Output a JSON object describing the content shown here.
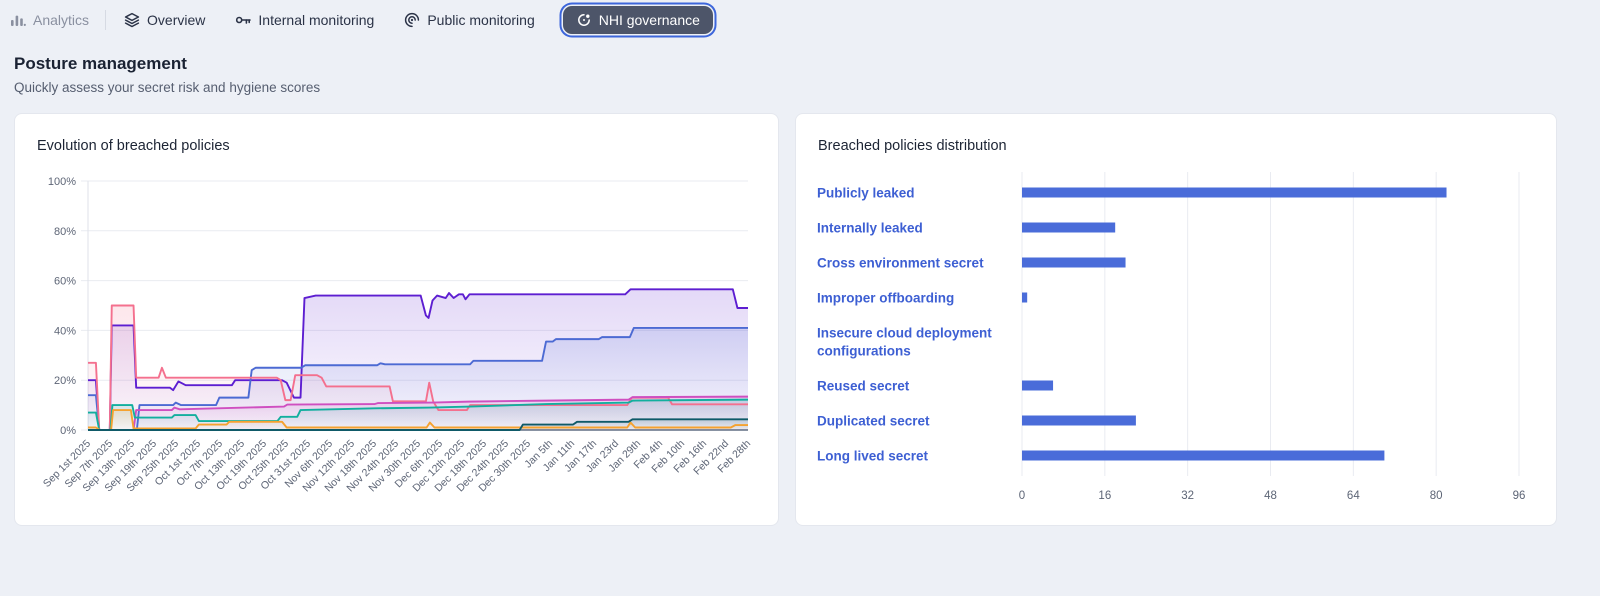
{
  "nav": {
    "analytics": {
      "label": "Analytics",
      "icon": "bar-chart-icon"
    },
    "tabs": [
      {
        "label": "Overview",
        "icon": "layers-icon",
        "selected": false
      },
      {
        "label": "Internal monitoring",
        "icon": "key-icon",
        "selected": false
      },
      {
        "label": "Public monitoring",
        "icon": "spiral-icon",
        "selected": false
      },
      {
        "label": "NHI governance",
        "icon": "orbit-icon",
        "selected": true
      }
    ]
  },
  "header": {
    "title": "Posture management",
    "subtitle": "Quickly assess your secret risk and hygiene scores"
  },
  "colors": {
    "page_bg": "#edf0f6",
    "card_bg": "#ffffff",
    "accent_bar_blue": "#4a6cd9",
    "link_blue": "#3d5fd3",
    "pill_bg": "#4d5569",
    "pill_ring": "#3d66db",
    "grid_line": "#e9ebf1",
    "tick_text": "#5d6576"
  },
  "chart_data": [
    {
      "type": "area",
      "title": "Evolution of breached policies",
      "xlabel": "",
      "ylabel": "",
      "ylim": [
        0,
        100
      ],
      "grid": "horizontal",
      "legend": "none",
      "ytick_labels": [
        "0%",
        "20%",
        "40%",
        "60%",
        "80%",
        "100%"
      ],
      "yticks": [
        0,
        20,
        40,
        60,
        80,
        100
      ],
      "x_labels": [
        "Sep 1st 2025",
        "Sep 7th 2025",
        "Sep 13th 2025",
        "Sep 19th 2025",
        "Sep 25th 2025",
        "Oct 1st 2025",
        "Oct 7th 2025",
        "Oct 13th 2025",
        "Oct 19th 2025",
        "Oct 25th 2025",
        "Oct 31st 2025",
        "Nov 6th 2025",
        "Nov 12th 2025",
        "Nov 18th 2025",
        "Nov 24th 2025",
        "Nov 30th 2025",
        "Dec 6th 2025",
        "Dec 12th 2025",
        "Dec 18th 2025",
        "Dec 24th 2025",
        "Dec 30th 2025",
        "Jan 5th",
        "Jan 11th",
        "Jan 17th",
        "Jan 23rd",
        "Jan 29th",
        "Feb 4th",
        "Feb 10th",
        "Feb 16th",
        "Feb 22nd",
        "Feb 28th"
      ],
      "series": [
        {
          "color": "#5d1ed1",
          "points": [
            [
              0,
              20
            ],
            [
              1.2,
              20
            ],
            [
              1.7,
              0
            ],
            [
              3.3,
              0
            ],
            [
              3.6,
              42
            ],
            [
              6.9,
              42
            ],
            [
              7.3,
              17
            ],
            [
              12.4,
              17
            ],
            [
              12.9,
              16
            ],
            [
              13.7,
              19.5
            ],
            [
              14.8,
              18
            ],
            [
              21.8,
              18
            ],
            [
              22.3,
              20
            ],
            [
              29.4,
              20
            ],
            [
              30.1,
              19
            ],
            [
              31.2,
              13
            ],
            [
              32.2,
              13
            ],
            [
              32.8,
              53
            ],
            [
              34.5,
              54
            ],
            [
              50.4,
              54
            ],
            [
              51.2,
              46
            ],
            [
              51.6,
              45
            ],
            [
              52.2,
              52
            ],
            [
              52.9,
              54
            ],
            [
              54.2,
              53
            ],
            [
              54.7,
              55
            ],
            [
              55.4,
              53
            ],
            [
              56.2,
              54.5
            ],
            [
              56.8,
              54.5
            ],
            [
              57.2,
              52.5
            ],
            [
              57.8,
              54.5
            ],
            [
              81.4,
              54.5
            ],
            [
              82.2,
              56.5
            ],
            [
              97.7,
              56.5
            ],
            [
              98.4,
              49
            ],
            [
              100,
              49
            ]
          ]
        },
        {
          "color": "#4c6ad3",
          "points": [
            [
              0,
              14
            ],
            [
              1.2,
              14
            ],
            [
              1.7,
              0
            ],
            [
              7.4,
              0
            ],
            [
              7.8,
              10
            ],
            [
              12.9,
              10
            ],
            [
              13.3,
              11
            ],
            [
              14.1,
              10
            ],
            [
              19.4,
              10
            ],
            [
              19.9,
              13
            ],
            [
              24.3,
              13
            ],
            [
              24.8,
              24
            ],
            [
              25.4,
              25
            ],
            [
              32.3,
              25
            ],
            [
              32.9,
              26
            ],
            [
              43.8,
              26
            ],
            [
              44.3,
              26.8
            ],
            [
              45,
              26.4
            ],
            [
              57.9,
              26.4
            ],
            [
              58.4,
              27.8
            ],
            [
              68.8,
              27.8
            ],
            [
              69.4,
              35.5
            ],
            [
              70.4,
              35.5
            ],
            [
              70.9,
              36.5
            ],
            [
              77.4,
              36.5
            ],
            [
              77.9,
              37.3
            ],
            [
              82.1,
              37.3
            ],
            [
              82.7,
              41
            ],
            [
              100,
              41
            ]
          ]
        },
        {
          "color": "#f4708e",
          "points": [
            [
              0,
              27
            ],
            [
              1.2,
              27
            ],
            [
              1.7,
              0
            ],
            [
              3.3,
              0
            ],
            [
              3.6,
              50
            ],
            [
              6.9,
              50
            ],
            [
              7.3,
              21
            ],
            [
              10.7,
              21
            ],
            [
              11.2,
              25
            ],
            [
              11.8,
              21
            ],
            [
              28.6,
              21
            ],
            [
              29.2,
              20
            ],
            [
              29.9,
              12
            ],
            [
              30.7,
              12
            ],
            [
              31.4,
              22
            ],
            [
              34.7,
              22
            ],
            [
              35.4,
              21
            ],
            [
              36.1,
              17.5
            ],
            [
              45.7,
              17.5
            ],
            [
              46.2,
              11.5
            ],
            [
              51.2,
              11.5
            ],
            [
              51.7,
              19
            ],
            [
              52.3,
              11.5
            ],
            [
              53.1,
              8
            ],
            [
              57.4,
              8
            ],
            [
              57.9,
              10
            ],
            [
              81.7,
              10
            ],
            [
              82.4,
              13
            ],
            [
              87.9,
              13
            ],
            [
              88.5,
              10.3
            ],
            [
              100,
              10.3
            ]
          ]
        },
        {
          "color": "#cf4fc0",
          "points": [
            [
              0,
              0
            ],
            [
              6.9,
              0
            ],
            [
              7.3,
              8
            ],
            [
              12.7,
              8
            ],
            [
              13.1,
              9
            ],
            [
              13.9,
              8.3
            ],
            [
              29.7,
              9.4
            ],
            [
              30.2,
              10.2
            ],
            [
              43.4,
              10.4
            ],
            [
              43.9,
              10.8
            ],
            [
              52.2,
              11
            ],
            [
              57.7,
              11.4
            ],
            [
              69.4,
              11.8
            ],
            [
              81.9,
              12.2
            ],
            [
              82.5,
              13.2
            ],
            [
              100,
              13.4
            ]
          ]
        },
        {
          "color": "#12af9e",
          "points": [
            [
              0,
              7
            ],
            [
              1.2,
              7
            ],
            [
              1.7,
              0
            ],
            [
              3.4,
              0
            ],
            [
              3.7,
              10
            ],
            [
              6.7,
              10
            ],
            [
              7.1,
              5
            ],
            [
              12.7,
              5
            ],
            [
              13.1,
              6
            ],
            [
              16.3,
              6
            ],
            [
              16.8,
              3.6
            ],
            [
              28.7,
              3.6
            ],
            [
              29.2,
              5.3
            ],
            [
              31.7,
              5.3
            ],
            [
              32.2,
              8
            ],
            [
              43.4,
              8.7
            ],
            [
              51.9,
              9
            ],
            [
              57.9,
              9.4
            ],
            [
              69.4,
              10.4
            ],
            [
              81.9,
              11
            ],
            [
              82.5,
              11.8
            ],
            [
              100,
              12.2
            ]
          ]
        },
        {
          "color": "#f5a230",
          "points": [
            [
              0,
              1
            ],
            [
              1.2,
              1
            ],
            [
              1.8,
              0
            ],
            [
              3.5,
              0
            ],
            [
              3.8,
              8
            ],
            [
              6.5,
              8
            ],
            [
              6.9,
              0.6
            ],
            [
              16.3,
              0.6
            ],
            [
              16.8,
              2.2
            ],
            [
              21,
              2.2
            ],
            [
              21.4,
              3.3
            ],
            [
              29.4,
              3.3
            ],
            [
              30.1,
              1
            ],
            [
              51.3,
              1
            ],
            [
              51.8,
              3
            ],
            [
              52.5,
              1
            ],
            [
              81.7,
              1
            ],
            [
              82.2,
              3
            ],
            [
              82.9,
              1
            ],
            [
              97.4,
              1
            ],
            [
              98.1,
              2
            ],
            [
              100,
              2
            ]
          ]
        },
        {
          "color": "#0f5a68",
          "points": [
            [
              0,
              0
            ],
            [
              65.4,
              0
            ],
            [
              65.9,
              2.2
            ],
            [
              73.5,
              2.2
            ],
            [
              74.1,
              3.3
            ],
            [
              81.9,
              3.3
            ],
            [
              82.5,
              4.3
            ],
            [
              100,
              4.3
            ]
          ]
        }
      ]
    },
    {
      "type": "bar",
      "orientation": "horizontal",
      "title": "Breached policies distribution",
      "categories": [
        "Publicly leaked",
        "Internally leaked",
        "Cross environment secret",
        "Improper offboarding",
        "Insecure cloud deployment configurations",
        "Reused secret",
        "Duplicated secret",
        "Long lived secret"
      ],
      "values": [
        82,
        18,
        20,
        1,
        0,
        6,
        22,
        70
      ],
      "xlim": [
        0,
        96
      ],
      "xticks": [
        0,
        16,
        32,
        48,
        64,
        80,
        96
      ],
      "grid": "vertical",
      "bar_color": "#4a6cd9",
      "category_color": "#3d5fd3"
    }
  ]
}
